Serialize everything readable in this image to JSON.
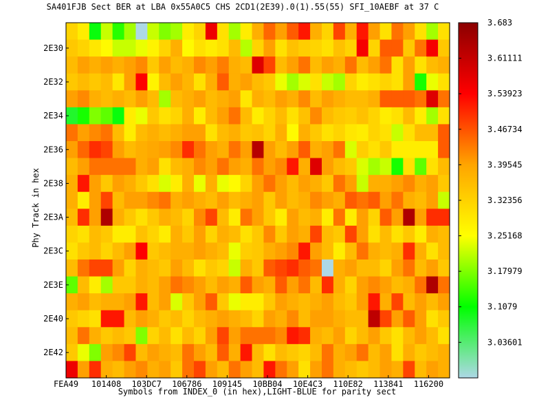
{
  "chart_data": {
    "type": "heatmap",
    "title": "SA401FJB Sect BER at LBA 0x55A0C5 CHS 2CD1(2E39).0(1).55(55) SFI_10AEBF at 37 C",
    "xlabel": "Symbols from INDEX_0 (in hex),LIGHT-BLUE for parity sect",
    "ylabel": "Phy Track in hex",
    "x_tick_labels": [
      "FEA49",
      "101408",
      "103DC7",
      "106786",
      "109145",
      "10BB04",
      "10E4C3",
      "110E82",
      "113841",
      "116200"
    ],
    "y_tick_labels": [
      "2E30",
      "2E32",
      "2E34",
      "2E36",
      "2E38",
      "2E3A",
      "2E3C",
      "2E3E",
      "2E40",
      "2E42"
    ],
    "colorbar": {
      "min": 2.964,
      "max": 3.683,
      "tick_labels": [
        "3.683",
        "3.61111",
        "3.53923",
        "3.46734",
        "3.39545",
        "3.32356",
        "3.25168",
        "3.17979",
        "3.1079",
        "3.03601"
      ],
      "stops": [
        "#add8e6",
        "#00ff00",
        "#ffff00",
        "#ffa500",
        "#ff0000",
        "#8b0000"
      ]
    },
    "parity_color": "#add8e6",
    "grid": false,
    "rows": 21,
    "cols": 33,
    "values": [
      [
        3.32,
        3.28,
        3.1,
        3.22,
        3.13,
        3.2,
        -1,
        3.22,
        3.18,
        3.2,
        3.28,
        3.32,
        3.56,
        3.3,
        3.2,
        3.28,
        3.38,
        3.45,
        3.4,
        3.46,
        3.52,
        3.38,
        3.32,
        3.48,
        3.38,
        3.52,
        3.4,
        3.3,
        3.44,
        3.4,
        3.3,
        3.2,
        3.3
      ],
      [
        3.34,
        3.32,
        3.29,
        3.26,
        3.22,
        3.22,
        3.24,
        3.27,
        3.32,
        3.38,
        3.26,
        3.3,
        3.28,
        3.3,
        3.36,
        3.21,
        3.32,
        3.4,
        3.3,
        3.35,
        3.33,
        3.32,
        3.3,
        3.35,
        3.32,
        3.55,
        3.32,
        3.46,
        3.46,
        3.34,
        3.44,
        3.55,
        3.34
      ],
      [
        3.36,
        3.4,
        3.38,
        3.4,
        3.38,
        3.4,
        3.42,
        3.34,
        3.4,
        3.36,
        3.38,
        3.42,
        3.4,
        3.43,
        3.38,
        3.36,
        3.58,
        3.48,
        3.36,
        3.4,
        3.44,
        3.36,
        3.4,
        3.38,
        3.44,
        3.36,
        3.4,
        3.44,
        3.3,
        3.4,
        3.3,
        3.36,
        3.38
      ],
      [
        3.34,
        3.36,
        3.34,
        3.36,
        3.29,
        3.4,
        3.54,
        3.27,
        3.36,
        3.4,
        3.37,
        3.3,
        3.38,
        3.46,
        3.38,
        3.4,
        3.36,
        3.34,
        3.24,
        3.2,
        3.23,
        3.3,
        3.22,
        3.2,
        3.32,
        3.28,
        3.3,
        3.32,
        3.3,
        3.4,
        3.12,
        3.24,
        3.3
      ],
      [
        3.4,
        3.42,
        3.38,
        3.36,
        3.38,
        3.36,
        3.4,
        3.36,
        3.2,
        3.36,
        3.38,
        3.4,
        3.36,
        3.38,
        3.4,
        3.29,
        3.38,
        3.36,
        3.4,
        3.38,
        3.42,
        3.36,
        3.4,
        3.38,
        3.36,
        3.36,
        3.38,
        3.46,
        3.46,
        3.46,
        3.44,
        3.58,
        3.44
      ],
      [
        3.08,
        3.12,
        3.18,
        3.16,
        3.1,
        3.28,
        3.24,
        3.34,
        3.3,
        3.32,
        3.38,
        3.28,
        3.36,
        3.4,
        3.44,
        3.36,
        3.28,
        3.32,
        3.36,
        3.3,
        3.35,
        3.42,
        3.36,
        3.34,
        3.33,
        3.35,
        3.32,
        3.28,
        3.3,
        3.36,
        3.28,
        3.2,
        3.3
      ],
      [
        3.44,
        3.4,
        3.42,
        3.44,
        3.36,
        3.28,
        3.36,
        3.38,
        3.36,
        3.38,
        3.4,
        3.4,
        3.3,
        3.36,
        3.38,
        3.34,
        3.35,
        3.32,
        3.38,
        3.26,
        3.38,
        3.34,
        3.3,
        3.32,
        3.29,
        3.28,
        3.32,
        3.3,
        3.22,
        3.3,
        3.36,
        3.36,
        3.46
      ],
      [
        3.4,
        3.45,
        3.5,
        3.48,
        3.4,
        3.36,
        3.38,
        3.39,
        3.4,
        3.42,
        3.5,
        3.44,
        3.4,
        3.38,
        3.44,
        3.4,
        3.63,
        3.4,
        3.36,
        3.4,
        3.46,
        3.38,
        3.4,
        3.44,
        3.23,
        3.33,
        3.3,
        3.34,
        3.28,
        3.28,
        3.28,
        3.28,
        3.46
      ],
      [
        3.36,
        3.4,
        3.44,
        3.44,
        3.44,
        3.44,
        3.38,
        3.4,
        3.3,
        3.36,
        3.38,
        3.42,
        3.4,
        3.44,
        3.4,
        3.38,
        3.44,
        3.4,
        3.42,
        3.52,
        3.38,
        3.58,
        3.4,
        3.36,
        3.34,
        3.23,
        3.2,
        3.22,
        3.12,
        3.3,
        3.16,
        3.3,
        3.36
      ],
      [
        3.38,
        3.52,
        3.4,
        3.34,
        3.4,
        3.38,
        3.34,
        3.3,
        3.23,
        3.28,
        3.38,
        3.24,
        3.38,
        3.24,
        3.26,
        3.32,
        3.4,
        3.44,
        3.4,
        3.36,
        3.4,
        3.38,
        3.34,
        3.44,
        3.4,
        3.22,
        3.38,
        3.38,
        3.4,
        3.42,
        3.38,
        3.4,
        3.34
      ],
      [
        3.38,
        3.28,
        3.4,
        3.48,
        3.36,
        3.4,
        3.4,
        3.42,
        3.44,
        3.38,
        3.4,
        3.38,
        3.36,
        3.4,
        3.36,
        3.38,
        3.4,
        3.34,
        3.4,
        3.36,
        3.38,
        3.42,
        3.4,
        3.38,
        3.46,
        3.44,
        3.46,
        3.4,
        3.44,
        3.38,
        3.36,
        3.4,
        3.22
      ],
      [
        3.36,
        3.5,
        3.4,
        3.64,
        3.38,
        3.34,
        3.3,
        3.34,
        3.38,
        3.36,
        3.32,
        3.42,
        3.48,
        3.36,
        3.28,
        3.44,
        3.4,
        3.34,
        3.28,
        3.4,
        3.36,
        3.38,
        3.28,
        3.44,
        3.28,
        3.4,
        3.32,
        3.46,
        3.4,
        3.64,
        3.4,
        3.5,
        3.5
      ],
      [
        3.32,
        3.3,
        3.36,
        3.34,
        3.28,
        3.28,
        3.35,
        3.32,
        3.28,
        3.38,
        3.34,
        3.4,
        3.32,
        3.38,
        3.36,
        3.3,
        3.34,
        3.42,
        3.34,
        3.4,
        3.38,
        3.48,
        3.36,
        3.34,
        3.48,
        3.4,
        3.3,
        3.36,
        3.3,
        3.34,
        3.28,
        3.38,
        3.36
      ],
      [
        3.3,
        3.34,
        3.36,
        3.32,
        3.36,
        3.4,
        3.54,
        3.34,
        3.36,
        3.38,
        3.38,
        3.4,
        3.38,
        3.36,
        3.24,
        3.33,
        3.34,
        3.38,
        3.4,
        3.42,
        3.52,
        3.4,
        3.36,
        3.28,
        3.36,
        3.44,
        3.38,
        3.36,
        3.38,
        3.5,
        3.38,
        3.3,
        3.36
      ],
      [
        3.36,
        3.44,
        3.48,
        3.48,
        3.4,
        3.32,
        3.38,
        3.36,
        3.34,
        3.4,
        3.36,
        3.3,
        3.34,
        3.32,
        3.22,
        3.38,
        3.34,
        3.46,
        3.48,
        3.5,
        3.46,
        3.44,
        -1,
        3.38,
        3.4,
        3.36,
        3.36,
        3.32,
        3.4,
        3.44,
        3.36,
        3.4,
        3.34
      ],
      [
        3.16,
        3.36,
        3.28,
        3.2,
        3.34,
        3.34,
        3.38,
        3.36,
        3.4,
        3.44,
        3.42,
        3.4,
        3.36,
        3.4,
        3.38,
        3.46,
        3.4,
        3.38,
        3.46,
        3.4,
        3.44,
        3.36,
        3.5,
        3.38,
        3.32,
        3.4,
        3.42,
        3.4,
        3.36,
        3.38,
        3.44,
        3.64,
        3.44
      ],
      [
        3.38,
        3.4,
        3.36,
        3.38,
        3.38,
        3.4,
        3.52,
        3.36,
        3.4,
        3.23,
        3.34,
        3.4,
        3.46,
        3.34,
        3.24,
        3.28,
        3.28,
        3.34,
        3.4,
        3.38,
        3.36,
        3.38,
        3.4,
        3.36,
        3.34,
        3.4,
        3.52,
        3.38,
        3.48,
        3.36,
        3.4,
        3.36,
        3.4
      ],
      [
        3.34,
        3.32,
        3.3,
        3.52,
        3.52,
        3.36,
        3.4,
        3.38,
        3.34,
        3.36,
        3.32,
        3.36,
        3.38,
        3.4,
        3.38,
        3.36,
        3.32,
        3.4,
        3.38,
        3.42,
        3.36,
        3.4,
        3.4,
        3.38,
        3.36,
        3.36,
        3.62,
        3.48,
        3.4,
        3.46,
        3.4,
        3.3,
        3.34
      ],
      [
        3.36,
        3.44,
        3.38,
        3.34,
        3.36,
        3.34,
        3.18,
        3.32,
        3.36,
        3.3,
        3.36,
        3.32,
        3.4,
        3.48,
        3.4,
        3.44,
        3.44,
        3.44,
        3.42,
        3.52,
        3.5,
        3.38,
        3.36,
        3.4,
        3.32,
        3.36,
        3.4,
        3.34,
        3.3,
        3.36,
        3.4,
        3.36,
        3.3
      ],
      [
        3.34,
        3.24,
        3.18,
        3.4,
        3.42,
        3.48,
        3.36,
        3.4,
        3.38,
        3.36,
        3.44,
        3.4,
        3.36,
        3.46,
        3.38,
        3.52,
        3.36,
        3.3,
        3.36,
        3.34,
        3.32,
        3.36,
        3.44,
        3.38,
        3.4,
        3.44,
        3.36,
        3.4,
        3.3,
        3.38,
        3.34,
        3.36,
        3.38
      ],
      [
        3.56,
        3.4,
        3.5,
        3.38,
        3.36,
        3.4,
        3.42,
        3.38,
        3.4,
        3.34,
        3.44,
        3.48,
        3.4,
        3.36,
        3.44,
        3.4,
        3.36,
        3.52,
        3.44,
        3.4,
        3.3,
        3.4,
        3.44,
        3.38,
        3.36,
        3.34,
        3.36,
        3.4,
        3.38,
        3.48,
        3.36,
        3.4,
        3.38
      ]
    ]
  }
}
